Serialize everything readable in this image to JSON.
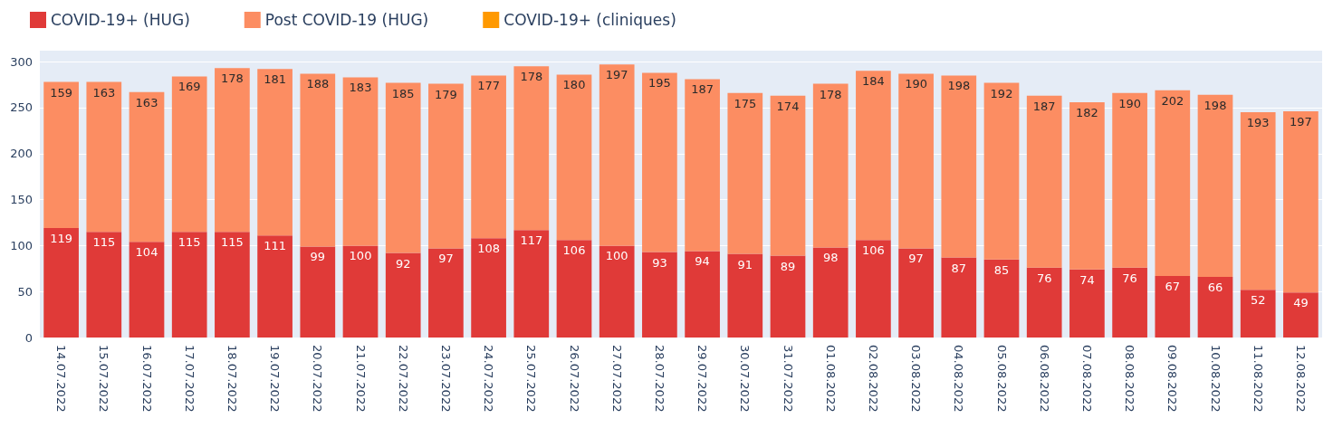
{
  "chart_data": {
    "type": "bar",
    "stacked": true,
    "data_labels": true,
    "legend": "top left",
    "grid": "y",
    "categories": [
      "14.07.2022",
      "15.07.2022",
      "16.07.2022",
      "17.07.2022",
      "18.07.2022",
      "19.07.2022",
      "20.07.2022",
      "21.07.2022",
      "22.07.2022",
      "23.07.2022",
      "24.07.2022",
      "25.07.2022",
      "26.07.2022",
      "27.07.2022",
      "28.07.2022",
      "29.07.2022",
      "30.07.2022",
      "31.07.2022",
      "01.08.2022",
      "02.08.2022",
      "03.08.2022",
      "04.08.2022",
      "05.08.2022",
      "06.08.2022",
      "07.08.2022",
      "08.08.2022",
      "09.08.2022",
      "10.08.2022",
      "11.08.2022",
      "12.08.2022"
    ],
    "ylim": [
      0,
      312
    ],
    "yticks": [
      0,
      50,
      100,
      150,
      200,
      250,
      300
    ],
    "series": [
      {
        "name": "COVID-19+ (HUG)",
        "color": "#e03a38",
        "values": [
          119,
          115,
          104,
          115,
          115,
          111,
          99,
          100,
          92,
          97,
          108,
          117,
          106,
          100,
          93,
          94,
          91,
          89,
          98,
          106,
          97,
          87,
          85,
          76,
          74,
          76,
          67,
          66,
          52,
          49
        ]
      },
      {
        "name": "Post COVID-19 (HUG)",
        "color": "#fc8d62",
        "values": [
          159,
          163,
          163,
          169,
          178,
          181,
          188,
          183,
          185,
          179,
          177,
          178,
          180,
          197,
          195,
          187,
          175,
          174,
          178,
          184,
          190,
          198,
          192,
          187,
          182,
          190,
          202,
          198,
          193,
          197
        ]
      },
      {
        "name": "COVID-19+ (cliniques)",
        "color": "#ff9900",
        "values": [
          null,
          null,
          null,
          null,
          null,
          null,
          null,
          null,
          null,
          null,
          null,
          null,
          null,
          null,
          null,
          null,
          null,
          null,
          null,
          null,
          null,
          null,
          null,
          null,
          null,
          null,
          null,
          null,
          null,
          null
        ]
      }
    ]
  }
}
